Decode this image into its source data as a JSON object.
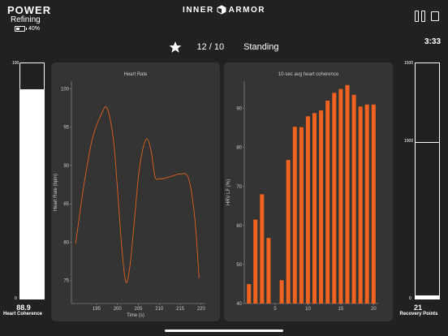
{
  "header": {
    "logo_text": "POWER",
    "mode": "Refining",
    "battery_percent": "40%",
    "battery_level": 0.4,
    "app_logo_left": "INNER",
    "app_logo_right": "ARMOR",
    "logo_icon": "cube-icon",
    "timer": "3:33"
  },
  "status": {
    "star_icon": "star-icon",
    "count": "12 / 10",
    "posture": "Standing"
  },
  "left_gauge": {
    "top_tick": "100",
    "bottom_tick": "0",
    "value": "88.9",
    "value_number": 88.9,
    "max": 100,
    "label": "Heart Coherence"
  },
  "right_gauge": {
    "top_tick": "1500",
    "mid_tick": "1000",
    "bottom_tick": "0",
    "value": "21",
    "value_number": 21,
    "max": 1500,
    "label": "Recovery Points"
  },
  "chart_data": [
    {
      "type": "line",
      "title": "Heart Rate",
      "xlabel": "Time (s)",
      "ylabel": "Heart Rate (bpm)",
      "xlim": [
        189,
        221
      ],
      "ylim": [
        72,
        101
      ],
      "xticks": [
        195,
        200,
        205,
        210,
        215,
        220
      ],
      "yticks": [
        75,
        80,
        85,
        90,
        95,
        100
      ],
      "color": "#e2621f",
      "x": [
        190,
        192,
        194,
        196,
        197.5,
        199,
        200,
        201,
        202,
        203,
        204,
        205,
        206,
        207,
        208,
        209,
        210,
        211,
        213,
        215,
        217,
        218.5,
        219.5
      ],
      "y": [
        79.8,
        87.5,
        93.5,
        96.5,
        97.5,
        93.5,
        87,
        79.5,
        74.8,
        77,
        82.5,
        88.5,
        92,
        93.5,
        92,
        88.5,
        88.3,
        88.3,
        88.6,
        88.9,
        88.3,
        83,
        75.3
      ]
    },
    {
      "type": "bar",
      "title": "10-sec avg heart coherence",
      "ylabel": "HRV LF (%)",
      "xlim": [
        0.3,
        20.7
      ],
      "ylim": [
        40,
        97
      ],
      "xticks": [
        5,
        10,
        15,
        20
      ],
      "yticks": [
        40,
        50,
        60,
        70,
        80,
        90
      ],
      "color": "#f0621f",
      "categories": [
        1,
        2,
        3,
        4,
        5,
        6,
        7,
        8,
        9,
        10,
        11,
        12,
        13,
        14,
        15,
        16,
        17,
        18,
        19,
        20
      ],
      "values": [
        45,
        61.5,
        68,
        56.8,
        40,
        46,
        76.8,
        85.3,
        85.2,
        88,
        88.8,
        89.5,
        92,
        94,
        95,
        96,
        93.5,
        90.5,
        91,
        91
      ]
    }
  ]
}
